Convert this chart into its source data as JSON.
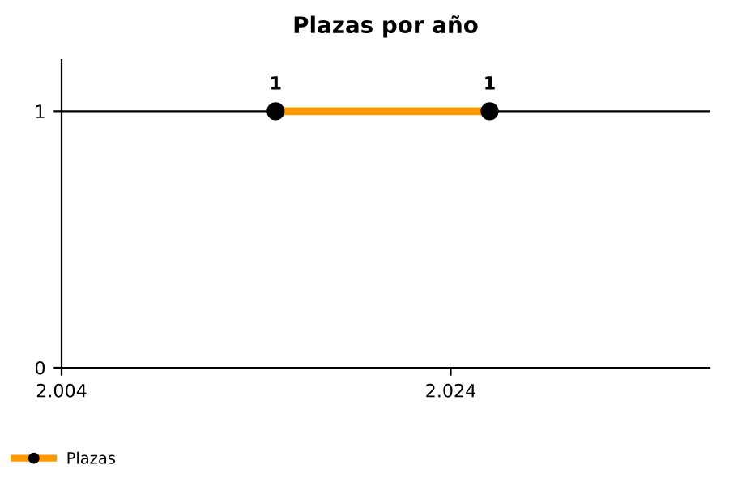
{
  "chart_data": {
    "type": "line",
    "title": "Plazas por año",
    "x": [
      2015,
      2026
    ],
    "series": [
      {
        "name": "Plazas",
        "color": "#ff9900",
        "values": [
          1,
          1
        ]
      }
    ],
    "xlim": [
      2004,
      2037.3
    ],
    "xticks": [
      {
        "value": 2004,
        "label": "2.004"
      },
      {
        "value": 2024,
        "label": "2.024"
      }
    ],
    "ylim": [
      0,
      1.2
    ],
    "yticks": [
      0,
      1
    ],
    "grid": "y",
    "legend": "bottom left",
    "marker": "circle",
    "data_labels": true
  }
}
